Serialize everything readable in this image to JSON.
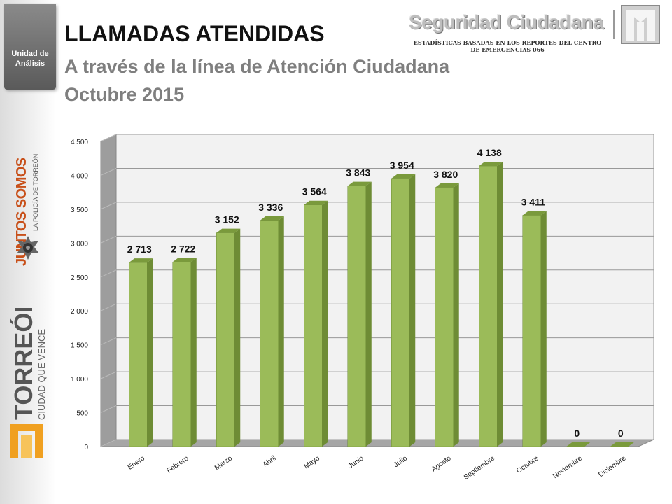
{
  "sidebar": {
    "unit_label_1": "Unidad de",
    "unit_label_2": "Análisis",
    "slogan": "JUNTOS SOMOS",
    "slogan_sub": "LA POLICÍA DE TORREÓN",
    "city": "TORREÓN",
    "city_sub": "CIUDAD QUE VENCE"
  },
  "header": {
    "title": "LLAMADAS ATENDIDAS",
    "subtitle": "A través de la línea de Atención Ciudadana",
    "period": "Octubre 2015",
    "brand": "Seguridad Ciudadana",
    "caption_1": "ESTADÍSTICAS BASADAS EN LOS REPORTES DEL CENTRO",
    "caption_2": "DE EMERGENCIAS 066"
  },
  "colors": {
    "bar_front": "#9bbb59",
    "bar_side": "#6e8c35",
    "bar_top": "#7a9a3c",
    "brand_orange": "#c8501a"
  },
  "chart_data": {
    "type": "bar",
    "categories": [
      "Enero",
      "Febrero",
      "Marzo",
      "Abril",
      "Mayo",
      "Junio",
      "Julio",
      "Agosto",
      "Septiembre",
      "Octubre",
      "Noviembre",
      "Diciembre"
    ],
    "values": [
      2713,
      2722,
      3152,
      3336,
      3564,
      3843,
      3954,
      3820,
      4138,
      3411,
      0,
      0
    ],
    "value_labels": [
      "2 713",
      "2 722",
      "3 152",
      "3 336",
      "3 564",
      "3 843",
      "3 954",
      "3 820",
      "4 138",
      "3 411",
      "0",
      "0"
    ],
    "ylim": [
      0,
      4500
    ],
    "yticks": [
      0,
      500,
      1000,
      1500,
      2000,
      2500,
      3000,
      3500,
      4000,
      4500
    ],
    "ytick_labels": [
      "0",
      "500",
      "1 000",
      "1 500",
      "2 000",
      "2 500",
      "3 000",
      "3 500",
      "4 000",
      "4 500"
    ],
    "grid": true,
    "style": "3d-column"
  }
}
